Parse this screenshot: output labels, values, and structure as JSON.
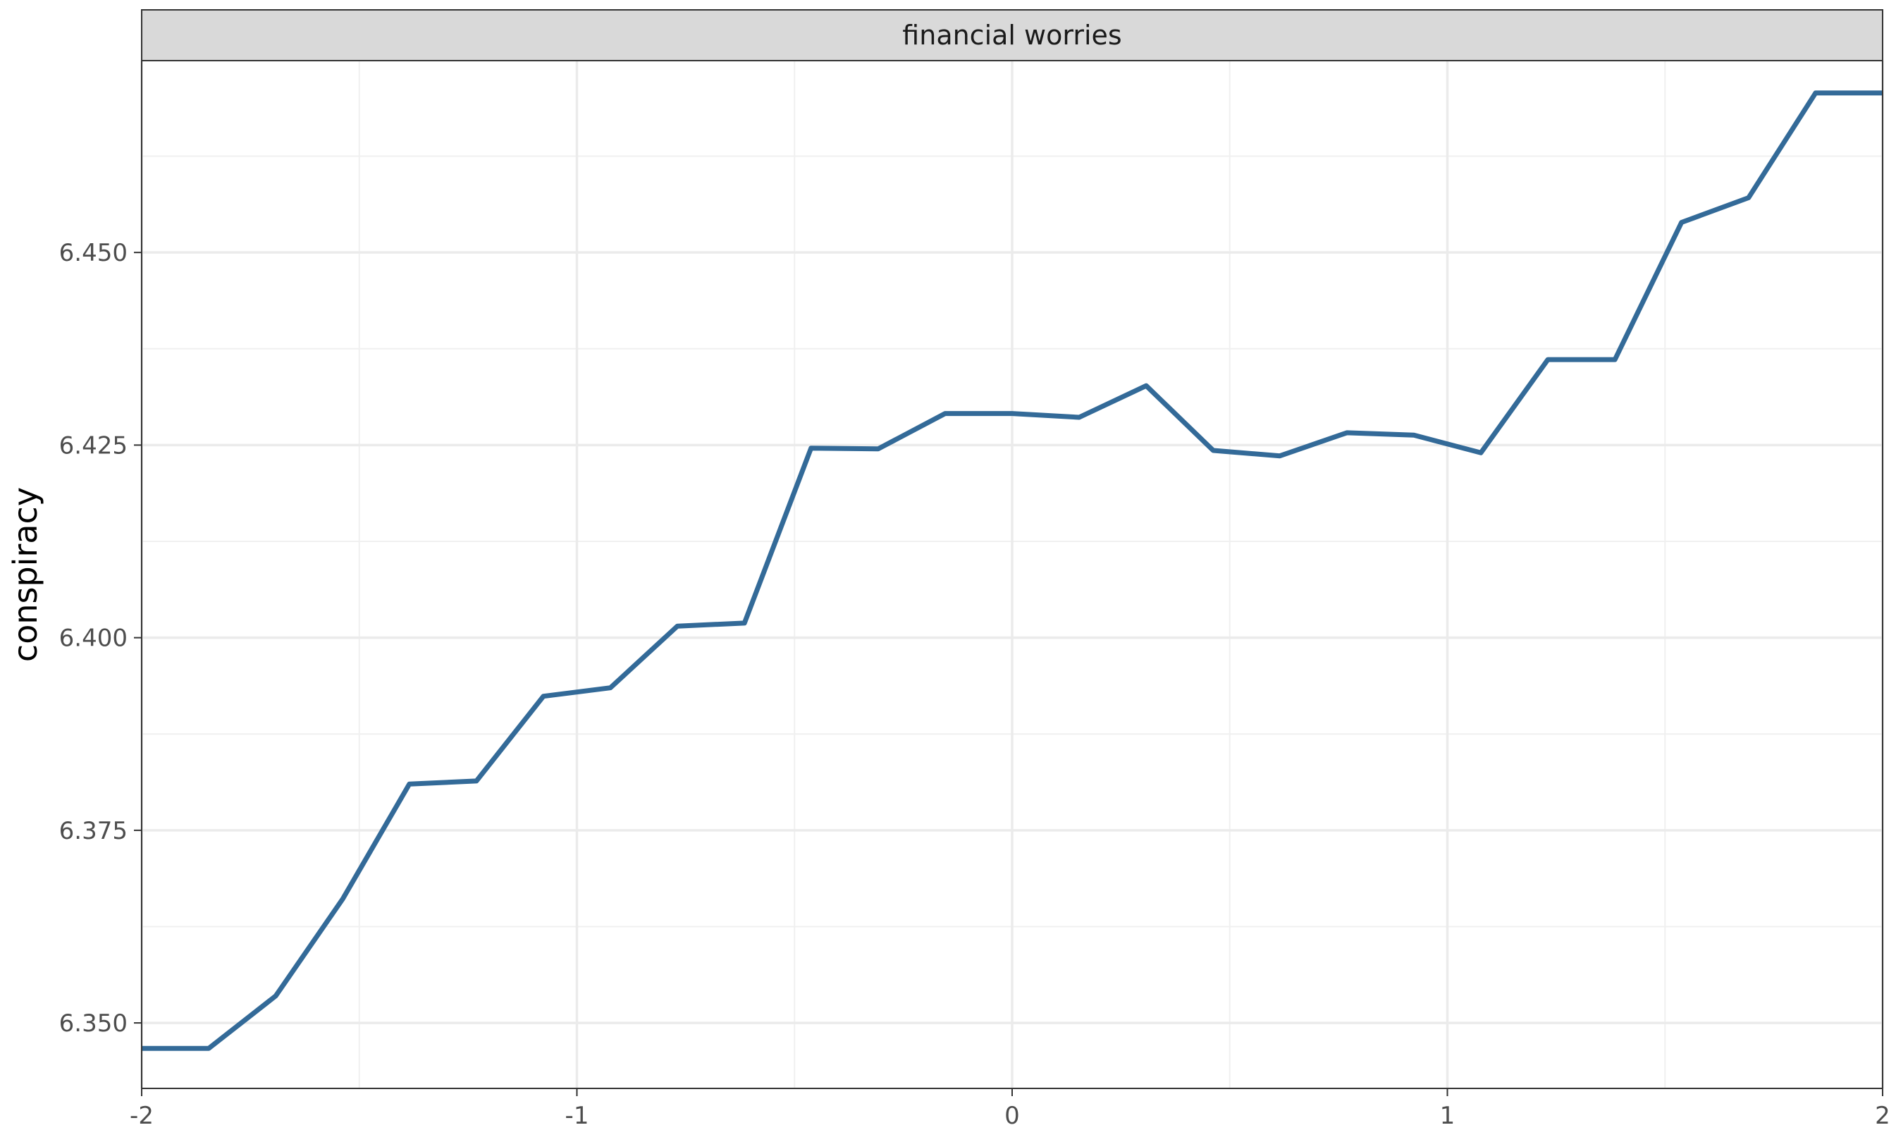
{
  "chart_data": {
    "type": "line",
    "facet_label": "financial worries",
    "xlabel": "",
    "ylabel": "conspiracy",
    "xlim": [
      -2,
      2
    ],
    "ylim": [
      6.3415,
      6.4749
    ],
    "x_ticks": [
      -2,
      -1,
      0,
      1,
      2
    ],
    "x_tick_labels": [
      "-2",
      "-1",
      "0",
      "1",
      "2"
    ],
    "y_ticks": [
      6.35,
      6.375,
      6.4,
      6.425,
      6.45
    ],
    "y_tick_labels": [
      "6.350",
      "6.375",
      "6.400",
      "6.425",
      "6.450"
    ],
    "grid": true,
    "line_color": "#336a98",
    "x": [
      -2.0,
      -1.846,
      -1.692,
      -1.538,
      -1.385,
      -1.231,
      -1.077,
      -0.923,
      -0.769,
      -0.615,
      -0.462,
      -0.308,
      -0.154,
      0.0,
      0.154,
      0.308,
      0.462,
      0.615,
      0.769,
      0.923,
      1.077,
      1.231,
      1.385,
      1.538,
      1.692,
      1.846,
      2.0
    ],
    "y": [
      6.3467,
      6.3467,
      6.3535,
      6.3661,
      6.381,
      6.3814,
      6.3924,
      6.3935,
      6.4015,
      6.4019,
      6.4246,
      6.4245,
      6.4291,
      6.4291,
      6.4286,
      6.4327,
      6.4243,
      6.4236,
      6.4266,
      6.4263,
      6.424,
      6.4361,
      6.4361,
      6.4539,
      6.4571,
      6.4707,
      6.4707
    ]
  }
}
